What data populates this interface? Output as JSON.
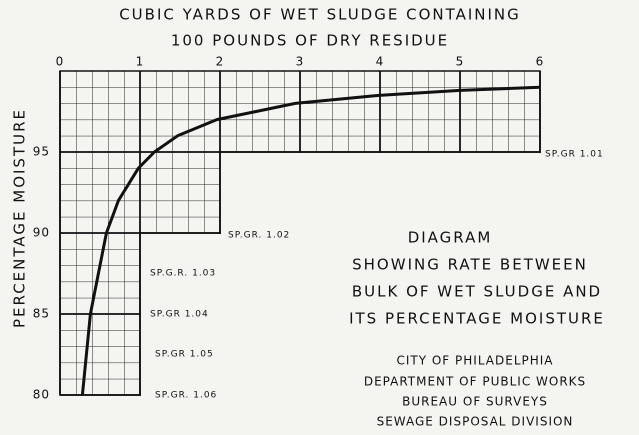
{
  "chart_data": {
    "type": "line",
    "title": "CUBIC YARDS OF WET SLUDGE CONTAINING",
    "subtitle": "100 POUNDS OF DRY RESIDUE",
    "y_label": "PERCENTAGE MOISTURE",
    "x": [
      0.28,
      0.38,
      0.58,
      0.73,
      0.98,
      1.18,
      1.47,
      1.96,
      2.94,
      4.0,
      5.0,
      6.0
    ],
    "series": [
      {
        "name": "Moisture",
        "color": "#111111",
        "values": [
          80,
          85,
          90,
          92,
          94,
          95,
          96,
          97,
          98,
          98.5,
          98.8,
          99.0
        ]
      }
    ],
    "xlim": [
      0,
      6
    ],
    "xticks": [
      0,
      1,
      2,
      3,
      4,
      5,
      6
    ],
    "ylim": [
      80,
      100
    ],
    "yticks": [
      80,
      85,
      90,
      95
    ],
    "grid": true,
    "annotations": [
      "SP.GR 1.01",
      "SP.GR. 1.02",
      "SP.G.R. 1.03",
      "SP.GR 1.04",
      "SP.GR 1.05",
      "SP.GR. 1.06"
    ],
    "diagram_text": [
      "DIAGRAM",
      "SHOWING RATE BETWEEN",
      "BULK OF WET SLUDGE AND",
      "ITS PERCENTAGE MOISTURE"
    ],
    "credits": [
      "CITY OF PHILADELPHIA",
      "DEPARTMENT OF PUBLIC WORKS",
      "BUREAU OF SURVEYS",
      "SEWAGE DISPOSAL DIVISION"
    ]
  }
}
